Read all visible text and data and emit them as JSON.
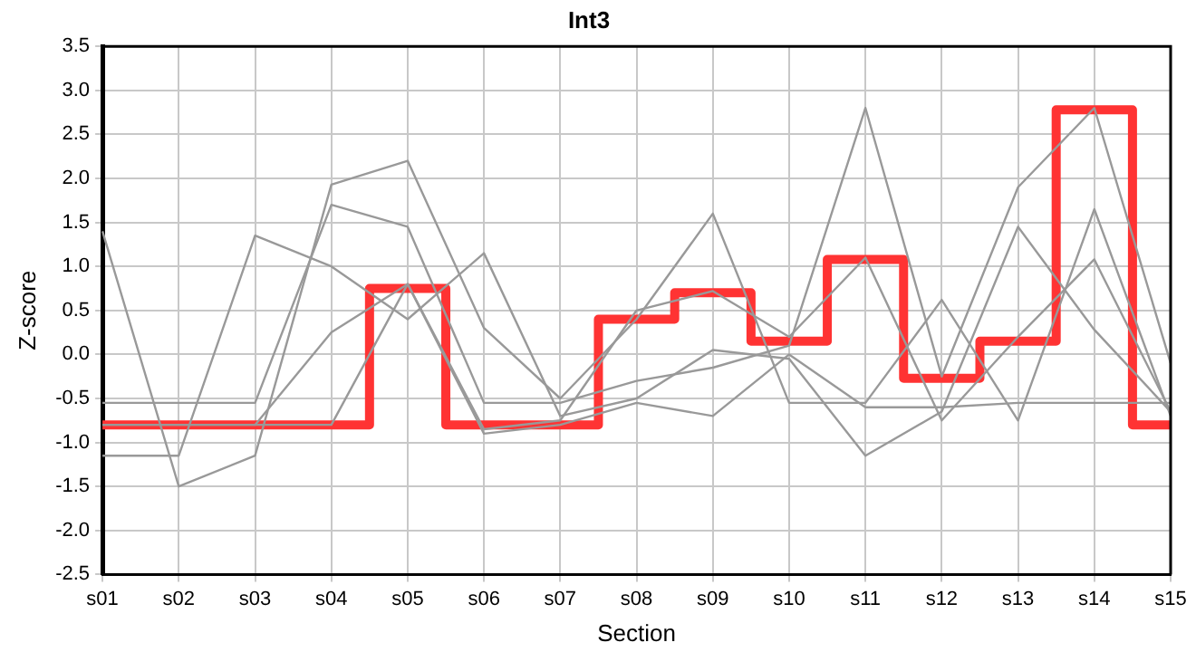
{
  "chart_data": {
    "type": "line",
    "title": "Int3",
    "xlabel": "Section",
    "ylabel": "Z-score",
    "categories": [
      "s01",
      "s02",
      "s03",
      "s04",
      "s05",
      "s06",
      "s07",
      "s08",
      "s09",
      "s10",
      "s11",
      "s12",
      "s13",
      "s14",
      "s15"
    ],
    "ylim": [
      -2.5,
      3.5
    ],
    "yticks": [
      -2.5,
      {
        "value": -2,
        "label": "-2.0"
      },
      -1.5,
      {
        "value": -1,
        "label": "-1.0"
      },
      -0.5,
      {
        "value": 0,
        "label": "0.0"
      },
      0.5,
      {
        "value": 1,
        "label": "1.0"
      },
      1.5,
      {
        "value": 2,
        "label": "2.0"
      },
      2.5,
      {
        "value": 3,
        "label": "3.0"
      },
      3.5
    ],
    "grid": true,
    "legend": false,
    "marker": "none",
    "series": [
      {
        "type": "line",
        "color": "#999999",
        "values": [
          1.4,
          -1.5,
          -1.15,
          1.93,
          2.2,
          0.3,
          -0.5,
          0.4,
          1.6,
          -0.55,
          -0.55,
          0.62,
          -0.75,
          1.65,
          -0.7
        ]
      },
      {
        "type": "line",
        "color": "#999999",
        "values": [
          -0.55,
          -0.55,
          -0.55,
          1.7,
          1.45,
          -0.55,
          -0.55,
          -0.3,
          -0.15,
          0.1,
          2.8,
          -0.25,
          1.9,
          2.8,
          -0.1
        ]
      },
      {
        "type": "line",
        "color": "#999999",
        "values": [
          -1.15,
          -1.15,
          1.35,
          1.0,
          0.4,
          1.15,
          -0.7,
          -0.5,
          0.05,
          -0.05,
          -1.15,
          -0.65,
          1.45,
          0.28,
          -0.65
        ]
      },
      {
        "type": "line",
        "color": "#999999",
        "values": [
          -0.8,
          -0.8,
          -0.8,
          0.25,
          0.8,
          -0.85,
          -0.75,
          0.5,
          0.72,
          0.2,
          1.1,
          -0.75,
          0.2,
          1.08,
          -0.65
        ]
      },
      {
        "type": "line",
        "color": "#999999",
        "values": [
          -0.8,
          -0.8,
          -0.8,
          -0.8,
          0.8,
          -0.9,
          -0.8,
          -0.55,
          -0.7,
          0,
          -0.6,
          -0.6,
          -0.55,
          -0.55,
          -0.55
        ]
      },
      {
        "type": "step",
        "color": "#ff3333",
        "values": [
          -0.8,
          -0.8,
          -0.8,
          -0.8,
          0.75,
          -0.8,
          -0.8,
          0.4,
          0.7,
          0.15,
          1.08,
          -0.27,
          0.15,
          2.78,
          -0.8
        ]
      }
    ]
  }
}
